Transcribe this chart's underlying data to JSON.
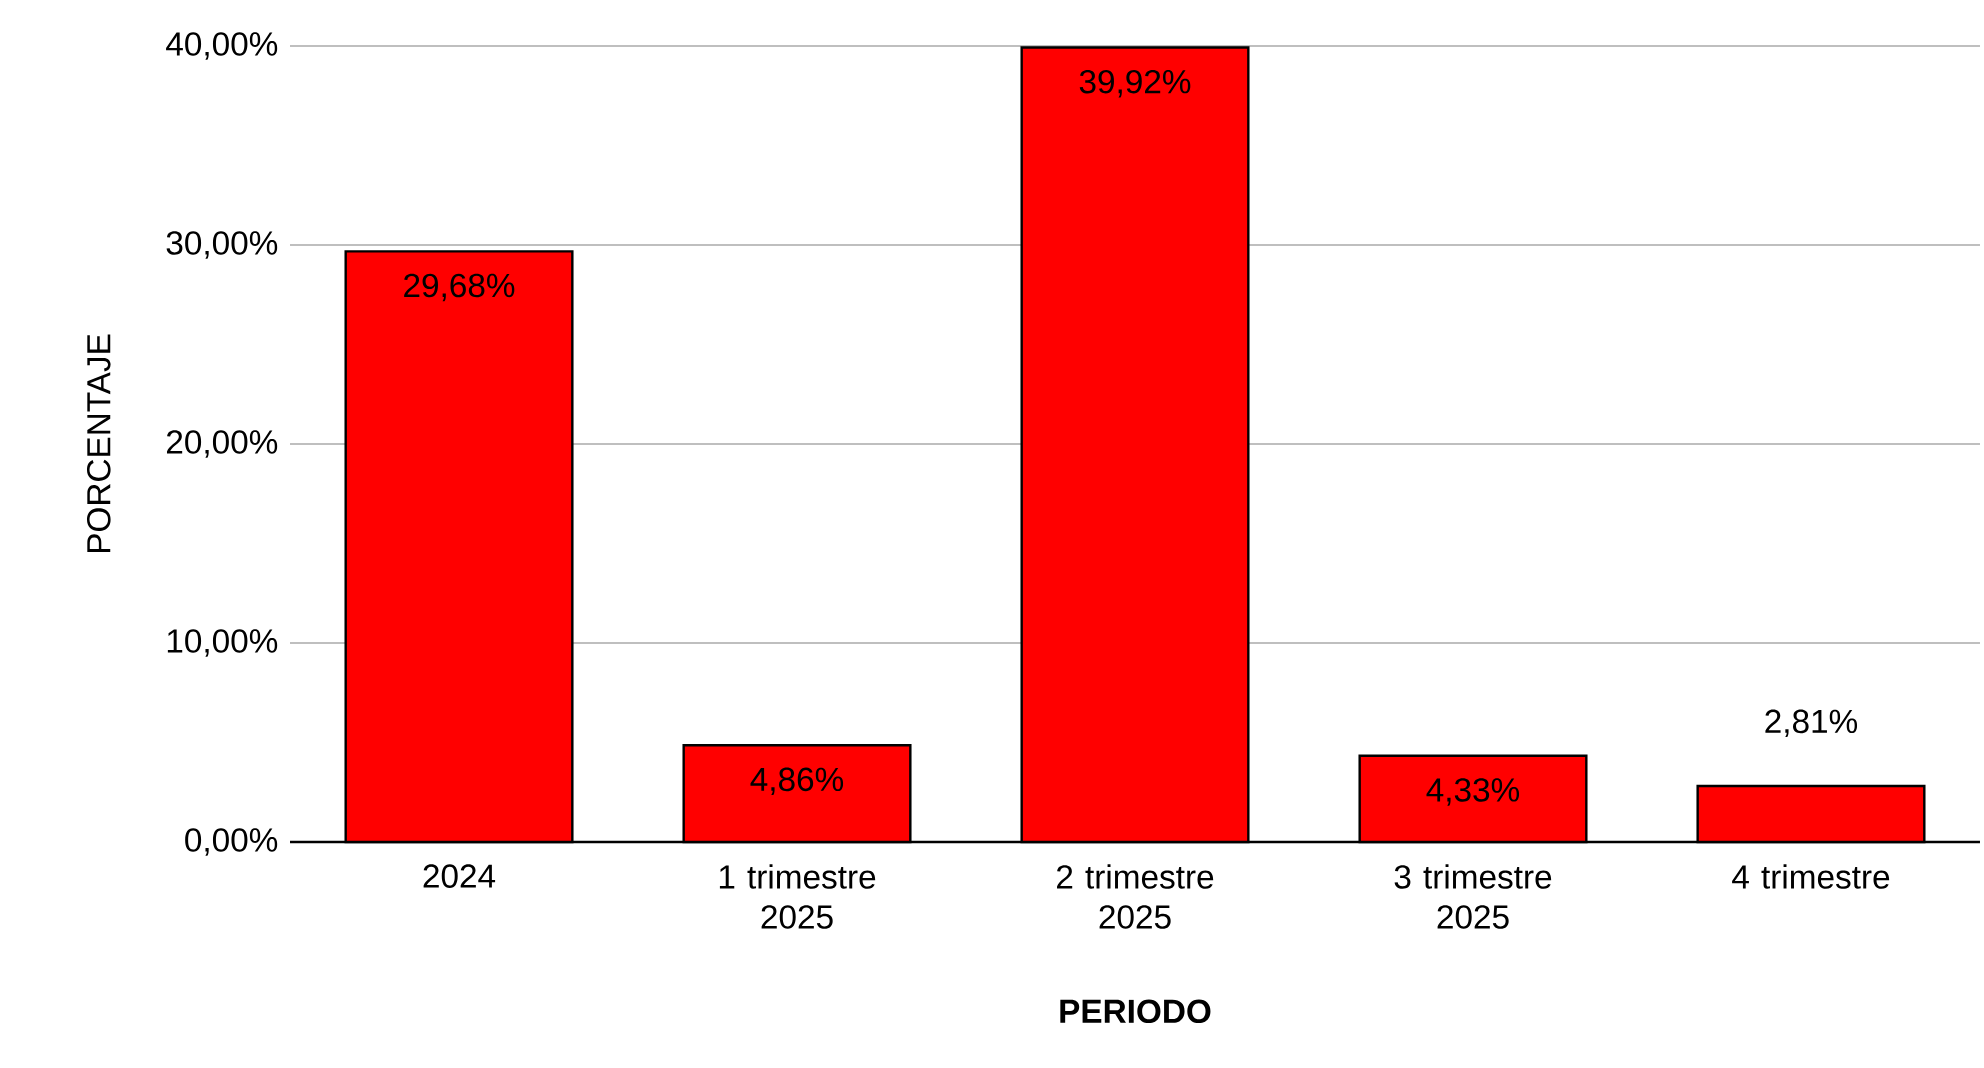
{
  "chart_data": {
    "type": "bar",
    "xlabel": "PERIODO",
    "ylabel": "PORCENTAJE",
    "categories": [
      "2024",
      "1 trimestre 2025",
      "2 trimestre 2025",
      "3 trimestre 2025",
      "4 trimestre"
    ],
    "values": [
      29.68,
      4.86,
      39.92,
      4.33,
      2.81
    ],
    "value_labels": [
      "29,68%",
      "4,86%",
      "39,92%",
      "4,33%",
      "2,81%"
    ],
    "color": "#ff0000",
    "ylim": [
      0,
      40
    ],
    "yticks": [
      {
        "value": 0,
        "label": "0,00%"
      },
      {
        "value": 10,
        "label": "10,00%"
      },
      {
        "value": 20,
        "label": "20,00%"
      },
      {
        "value": 30,
        "label": "30,00%"
      },
      {
        "value": 40,
        "label": "40,00%"
      }
    ],
    "grid": "y"
  }
}
